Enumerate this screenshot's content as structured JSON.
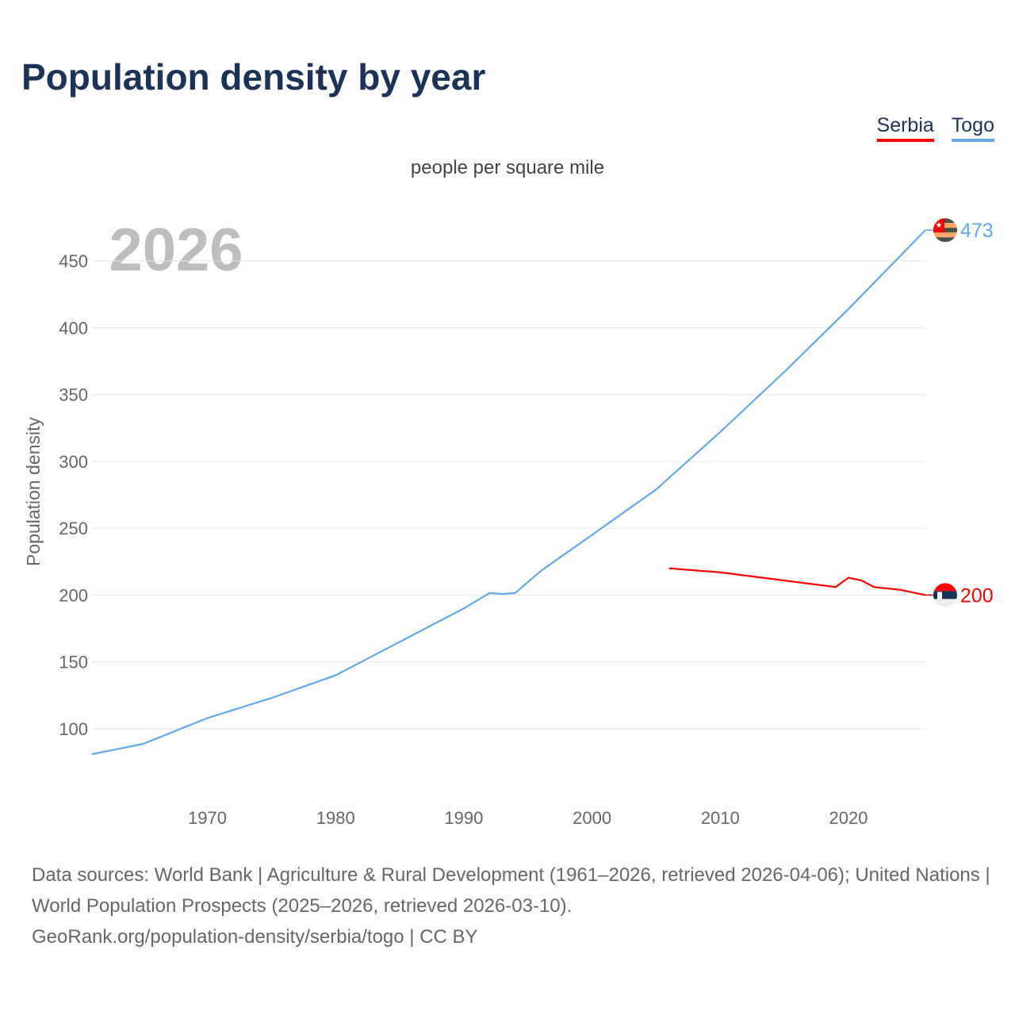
{
  "title": "Population density by year",
  "legend": [
    {
      "label": "Serbia",
      "color": "#ff0000"
    },
    {
      "label": "Togo",
      "color": "#63a8ec"
    }
  ],
  "unit_label": "people per square mile",
  "footer": {
    "line1": "Data sources: World Bank | Agriculture & Rural Development (1961–2026, retrieved 2026-04-06); United Nations | World Population Prospects (2025–2026, retrieved 2026-03-10).",
    "line2": "GeoRank.org/population-density/serbia/togo | CC BY"
  },
  "chart_data": {
    "type": "line",
    "title": "Population density by year",
    "subtitle": "people per square mile",
    "ylabel": "Population density",
    "xlabel": "",
    "year_watermark": "2026",
    "xlim": [
      1961,
      2026
    ],
    "ylim": [
      62,
      484
    ],
    "xticks": [
      1970,
      1980,
      1990,
      2000,
      2010,
      2020
    ],
    "yticks": [
      100,
      150,
      200,
      250,
      300,
      350,
      400,
      450
    ],
    "grid": true,
    "legend_position": "top-right",
    "series": [
      {
        "name": "Togo",
        "color": "#63a8ec",
        "end_label": "473",
        "flag": "togo-flag",
        "x": [
          1961,
          1965,
          1970,
          1975,
          1980,
          1985,
          1990,
          1992,
          1993,
          1994,
          1996,
          2000,
          2005,
          2010,
          2015,
          2020,
          2026
        ],
        "y": [
          81,
          88.7,
          108,
          123,
          140,
          165,
          190,
          201.5,
          200.8,
          201.5,
          218,
          245,
          279,
          322,
          367,
          414,
          473
        ]
      },
      {
        "name": "Serbia",
        "color": "#ff0000",
        "end_label": "200",
        "flag": "serbia-flag",
        "x": [
          2006,
          2010,
          2019,
          2020,
          2021,
          2022,
          2024,
          2026
        ],
        "y": [
          220,
          217,
          206,
          213,
          211,
          206,
          204,
          200
        ]
      }
    ]
  }
}
